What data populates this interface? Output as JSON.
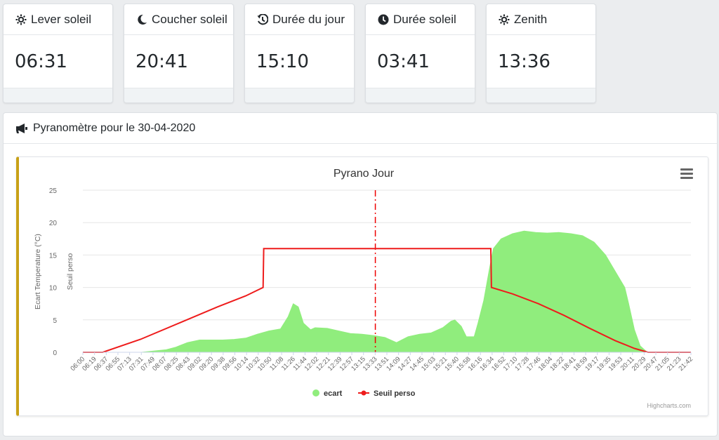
{
  "cards": [
    {
      "icon": "sun-icon",
      "title": "Lever soleil",
      "value": "06:31"
    },
    {
      "icon": "moon-icon",
      "title": "Coucher soleil",
      "value": "20:41"
    },
    {
      "icon": "history-icon",
      "title": "Durée du jour",
      "value": "15:10"
    },
    {
      "icon": "clock-icon",
      "title": "Durée soleil",
      "value": "03:41"
    },
    {
      "icon": "sun-icon",
      "title": "Zenith",
      "value": "13:36"
    }
  ],
  "panel": {
    "icon": "megaphone-icon",
    "title": "Pyranomètre pour le 30-04-2020"
  },
  "chart_data": {
    "type": "area",
    "title": "Pyrano Jour",
    "ylabel": "Ecart Temperature (°C)",
    "ylabel2": "Seuil perso",
    "ylim": [
      0,
      25
    ],
    "yticks": [
      0,
      5,
      10,
      15,
      20,
      25
    ],
    "grid": true,
    "legend_position": "bottom-center",
    "credits": "Highcharts.com",
    "x_tick_labels": [
      "06:00",
      "06:19",
      "06:37",
      "06:55",
      "07:13",
      "07:31",
      "07:49",
      "08:07",
      "08:25",
      "08:43",
      "09:02",
      "09:20",
      "09:38",
      "09:56",
      "10:14",
      "10:32",
      "10:50",
      "11:08",
      "11:26",
      "11:44",
      "12:02",
      "12:21",
      "12:39",
      "12:57",
      "13:15",
      "13:33",
      "13:51",
      "14:09",
      "14:27",
      "14:45",
      "15:03",
      "15:21",
      "15:40",
      "15:58",
      "16:16",
      "16:34",
      "16:52",
      "17:10",
      "17:28",
      "17:46",
      "18:04",
      "18:22",
      "18:41",
      "18:59",
      "19:17",
      "19:35",
      "19:53",
      "20:11",
      "20:29",
      "20:47",
      "21:05",
      "21:23",
      "21:42"
    ],
    "plotline_time": "13:36",
    "series": [
      {
        "name": "ecart",
        "color": "#90ed7d",
        "type": "area",
        "x": [
          "06:00",
          "07:30",
          "07:50",
          "08:10",
          "08:25",
          "08:43",
          "09:02",
          "09:20",
          "09:38",
          "09:56",
          "10:14",
          "10:32",
          "10:50",
          "11:08",
          "11:20",
          "11:28",
          "11:36",
          "11:44",
          "11:55",
          "12:02",
          "12:21",
          "12:39",
          "12:57",
          "13:15",
          "13:33",
          "13:51",
          "14:09",
          "14:27",
          "14:45",
          "15:03",
          "15:21",
          "15:34",
          "15:40",
          "15:50",
          "15:58",
          "16:10",
          "16:16",
          "16:25",
          "16:34",
          "16:40",
          "16:52",
          "17:10",
          "17:28",
          "17:46",
          "18:04",
          "18:22",
          "18:41",
          "18:59",
          "19:17",
          "19:35",
          "19:53",
          "20:05",
          "20:11",
          "20:20",
          "20:29",
          "20:40",
          "21:48"
        ],
        "values": [
          0,
          0,
          0.2,
          0.4,
          0.8,
          1.5,
          1.9,
          1.9,
          1.9,
          2.0,
          2.2,
          2.8,
          3.3,
          3.6,
          5.5,
          7.5,
          7.0,
          4.5,
          3.5,
          3.8,
          3.7,
          3.3,
          2.9,
          2.8,
          2.6,
          2.3,
          1.5,
          2.4,
          2.8,
          3.0,
          3.8,
          4.8,
          5.0,
          4.0,
          2.4,
          2.4,
          4.5,
          8.0,
          13.0,
          16.0,
          17.5,
          18.3,
          18.7,
          18.5,
          18.4,
          18.5,
          18.3,
          18.0,
          17.0,
          15.0,
          12.0,
          10.0,
          7.5,
          3.5,
          1.0,
          0,
          0
        ]
      },
      {
        "name": "Seuil perso",
        "color": "#ee1c1c",
        "type": "line",
        "x": [
          "06:00",
          "06:31",
          "07:30",
          "08:30",
          "09:30",
          "10:14",
          "10:41",
          "10:42",
          "16:36",
          "16:37",
          "17:10",
          "17:50",
          "18:30",
          "19:10",
          "19:50",
          "20:20",
          "20:41",
          "21:48"
        ],
        "values": [
          0,
          0,
          2.0,
          4.5,
          7.0,
          8.7,
          10,
          16,
          16,
          10,
          9.0,
          7.5,
          5.7,
          3.7,
          1.8,
          0.6,
          0,
          0
        ]
      }
    ]
  }
}
